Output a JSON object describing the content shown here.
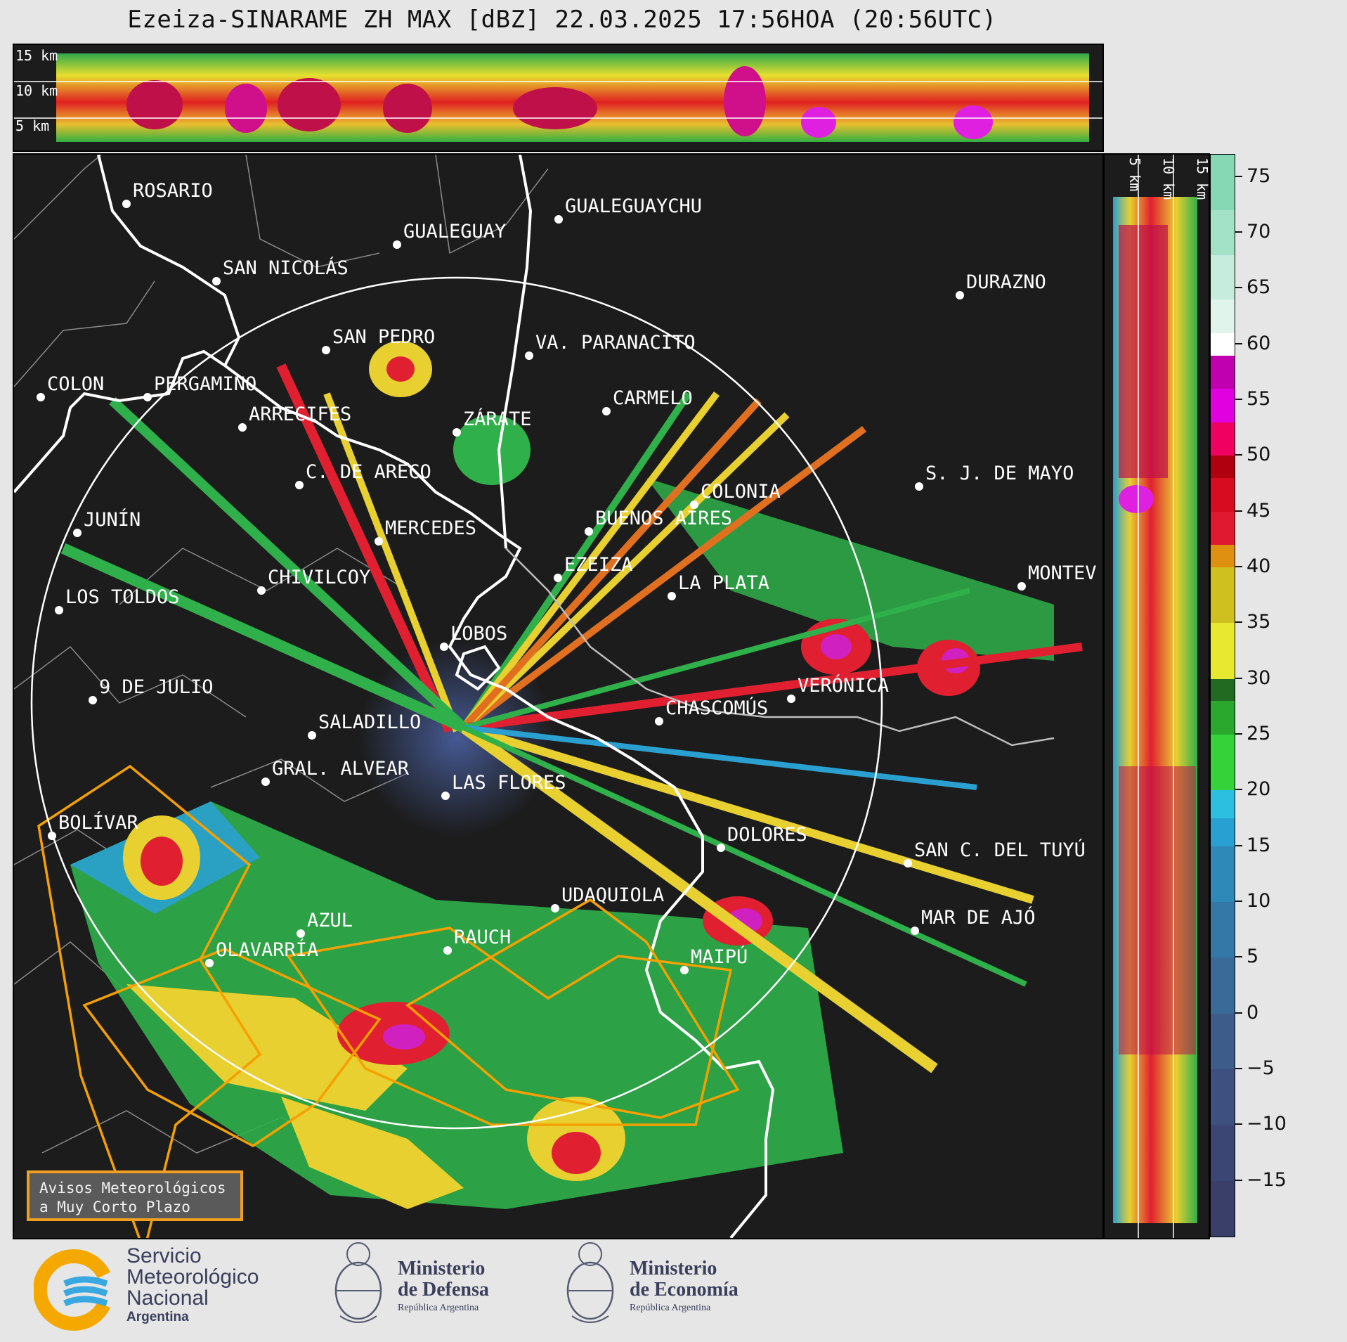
{
  "title": "Ezeiza-SINARAME ZH MAX [dBZ] 22.03.2025 17:56HOA (20:56UTC)",
  "top_panel": {
    "height_labels": [
      "15 km",
      "10 km",
      "5 km"
    ]
  },
  "side_panel": {
    "height_labels": [
      "5 km",
      "10 km",
      "15 km"
    ]
  },
  "colorbar": {
    "ticks": [
      "75",
      "70",
      "65",
      "60",
      "55",
      "50",
      "45",
      "40",
      "35",
      "30",
      "25",
      "20",
      "15",
      "10",
      "5",
      "0",
      "−5",
      "−10",
      "−15"
    ],
    "unit": "dBZ"
  },
  "cities": [
    {
      "name": "ROSARIO"
    },
    {
      "name": "GUALEGUAYCHU"
    },
    {
      "name": "GUALEGUAY"
    },
    {
      "name": "SAN NICOLÁS"
    },
    {
      "name": "DURAZNO"
    },
    {
      "name": "SAN PEDRO"
    },
    {
      "name": "VA. PARANACITO"
    },
    {
      "name": "COLON"
    },
    {
      "name": "PERGAMINO"
    },
    {
      "name": "CARMELO"
    },
    {
      "name": "ARRECIFES"
    },
    {
      "name": "ZÁRATE"
    },
    {
      "name": "S. J. DE MAYO"
    },
    {
      "name": "C. DE ARECO"
    },
    {
      "name": "COLONIA"
    },
    {
      "name": "JUNÍN"
    },
    {
      "name": "BUENOS AIRES"
    },
    {
      "name": "MERCEDES"
    },
    {
      "name": "EZEIZA"
    },
    {
      "name": "MONTEV"
    },
    {
      "name": "CHIVILCOY"
    },
    {
      "name": "LA PLATA"
    },
    {
      "name": "LOS TOLDOS"
    },
    {
      "name": "LOBOS"
    },
    {
      "name": "VERÓNICA"
    },
    {
      "name": "9 DE JULIO"
    },
    {
      "name": "CHASCOMÚS"
    },
    {
      "name": "SALADILLO"
    },
    {
      "name": "GRAL. ALVEAR"
    },
    {
      "name": "LAS FLORES"
    },
    {
      "name": "BOLÍVAR"
    },
    {
      "name": "DOLORES"
    },
    {
      "name": "SAN C. DEL TUYÚ"
    },
    {
      "name": "UDAQUIOLA"
    },
    {
      "name": "MAR DE AJÓ"
    },
    {
      "name": "AZUL"
    },
    {
      "name": "RAUCH"
    },
    {
      "name": "OLAVARRÍA"
    },
    {
      "name": "MAIPÚ"
    }
  ],
  "legend": {
    "text": "Avisos Meteorológicos\na Muy Corto Plazo"
  },
  "footer": {
    "smn_lines": [
      "Servicio",
      "Meteorológico",
      "Nacional"
    ],
    "smn_country": "Argentina",
    "defensa_lines": [
      "Ministerio",
      "de Defensa"
    ],
    "defensa_sub": "República Argentina",
    "economia_lines": [
      "Ministerio",
      "de Economía"
    ],
    "economia_sub": "República Argentina"
  },
  "colors": {
    "background": "#e6e6e6",
    "panel": "#1c1c1c",
    "warning_outline": "#f5a000",
    "range_ring": "#ffffff",
    "coastline": "#ffffff",
    "borders": "#8a8a8a"
  }
}
